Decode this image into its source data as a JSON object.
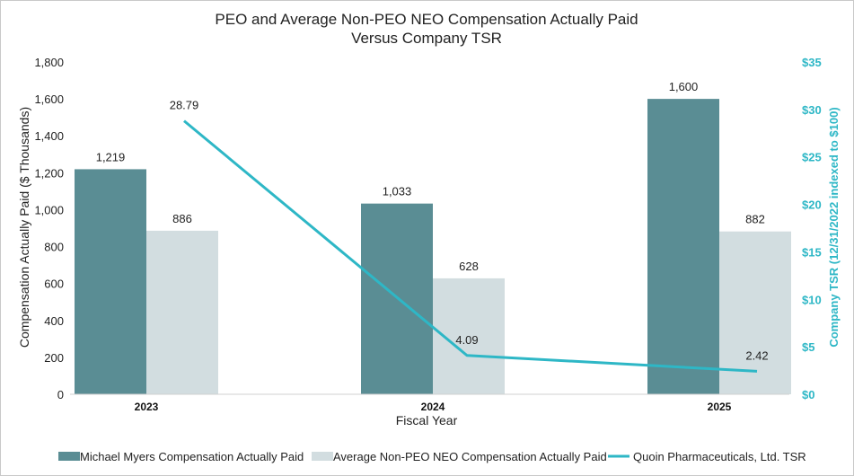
{
  "chart_data": {
    "type": "bar",
    "title": "PEO and Average Non-PEO NEO Compensation Actually Paid",
    "subtitle": "Versus Company TSR",
    "xlabel": "Fiscal Year",
    "ylabel": "Compensation  Actually Paid ($ Thousands)",
    "y2label": "Company TSR (12/31/2022  indexed to $100)",
    "categories": [
      "2023",
      "2024",
      "2025"
    ],
    "ylim": [
      0,
      1800
    ],
    "yticks": [
      "0",
      "200",
      "400",
      "600",
      "800",
      "1,000",
      "1,200",
      "1,400",
      "1,600",
      "1,800"
    ],
    "y2lim": [
      0,
      35
    ],
    "y2ticks": [
      "$0",
      "$5",
      "$10",
      "$15",
      "$20",
      "$25",
      "$30",
      "$35"
    ],
    "grid": false,
    "legend_position": "bottom",
    "series": [
      {
        "name": "Michael Myers Compensation Actually Paid",
        "type": "bar",
        "axis": "left",
        "color": "#5a8d94",
        "values": [
          1219,
          1033,
          1600
        ],
        "labels": [
          "1,219",
          "1,033",
          "1,600"
        ]
      },
      {
        "name": "Average Non-PEO NEO Compensation Actually Paid",
        "type": "bar",
        "axis": "left",
        "color": "#d2dde0",
        "values": [
          886,
          628,
          882
        ],
        "labels": [
          "886",
          "628",
          "882"
        ]
      },
      {
        "name": "Quoin Pharmaceuticals, Ltd. TSR",
        "type": "line",
        "axis": "right",
        "color": "#2eb7c6",
        "values": [
          28.79,
          4.09,
          2.42
        ],
        "labels": [
          "28.79",
          "4.09",
          "2.42"
        ]
      }
    ]
  }
}
